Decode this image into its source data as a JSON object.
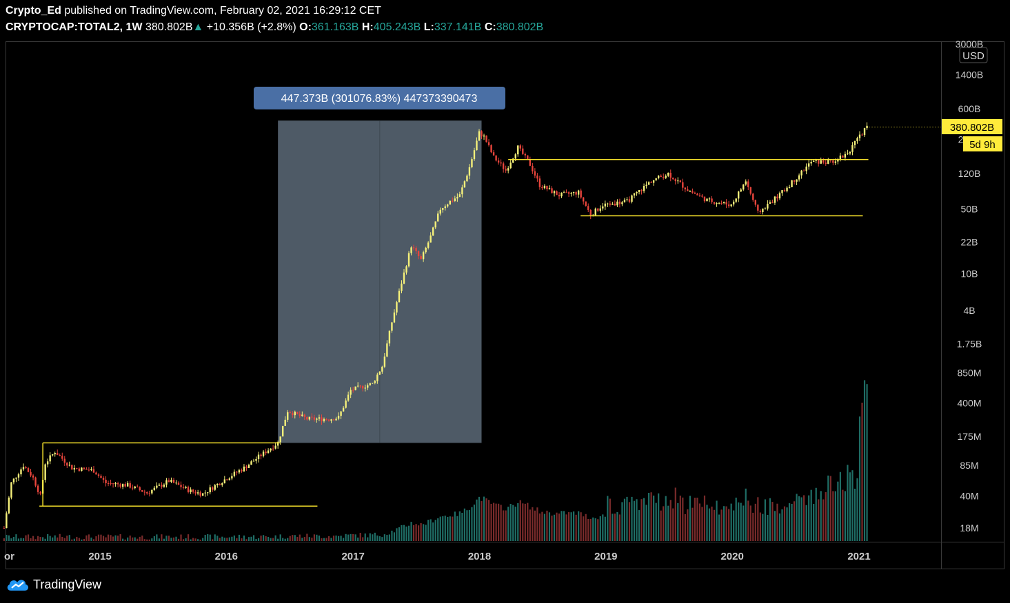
{
  "header": {
    "author": "Crypto_Ed",
    "published": "published on TradingView.com, February 02, 2021 16:29:12 CET",
    "symbol": "CRYPTOCAP:TOTAL2, 1W",
    "last": "380.802B",
    "up_arrow": "▲",
    "change": "+10.356B (+2.8%)",
    "o_label": "O:",
    "o_value": "361.163B",
    "h_label": "H:",
    "h_value": "405.243B",
    "l_label": "L:",
    "l_value": "337.141B",
    "c_label": "C:",
    "c_value": "380.802B"
  },
  "measure_label": "447.373B (301076.83%) 447373390473",
  "currency": "USD",
  "price_badge": "380.802B",
  "countdown_badge": "5d 9h",
  "footer_brand": "TradingView",
  "colors": {
    "up": "#26a69a",
    "down": "#ef5350",
    "candle_up": "#f5f07a",
    "candle_down": "#e8453c",
    "support_line": "#f5e12b",
    "measure_box": "#4e5a66",
    "measure_label_bg": "#4a6fa5",
    "badge": "#ffeb3b"
  },
  "chart_data": {
    "type": "candlestick",
    "scale": "log",
    "x_tick_labels": [
      "or",
      "2015",
      "2016",
      "2017",
      "2018",
      "2019",
      "2020",
      "2021"
    ],
    "x_tick_dates": [
      "2014-03-30",
      "2015-01-01",
      "2016-01-01",
      "2017-01-01",
      "2018-01-01",
      "2019-01-01",
      "2020-01-01",
      "2021-01-01"
    ],
    "y_tick_labels": [
      "3000B",
      "1400B",
      "600B",
      "280B",
      "120B",
      "50B",
      "22B",
      "10B",
      "4B",
      "1.75B",
      "850M",
      "400M",
      "175M",
      "85M",
      "40M",
      "18M"
    ],
    "y_tick_values": [
      3000000000000.0,
      1400000000000.0,
      600000000000.0,
      280000000000.0,
      120000000000.0,
      50000000000.0,
      22000000000.0,
      10000000000.0,
      4000000000.0,
      1750000000.0,
      850000000.0,
      400000000.0,
      175000000.0,
      85000000.0,
      40000000.0,
      18000000.0
    ],
    "last_close": 380802000000.0,
    "measure": {
      "from_date": "2016-05-29",
      "to_date": "2018-01-07",
      "from_value": 149000000.0,
      "to_value": 447373000000.0,
      "change_pct": 301076.83
    },
    "support_lines": [
      {
        "from_date": "2014-07-20",
        "to_date": "2016-06-05",
        "value": 149000000.0
      },
      {
        "from_date": "2014-07-10",
        "to_date": "2016-09-20",
        "value": 31000000.0
      },
      {
        "from_date": "2018-03-25",
        "to_date": "2021-01-28",
        "value": 170000000000.0
      },
      {
        "from_date": "2018-10-20",
        "to_date": "2021-01-12",
        "value": 42000000000.0
      }
    ],
    "close_path": [
      [
        "2014-03-30",
        18000000.0
      ],
      [
        "2014-04-20",
        55000000.0
      ],
      [
        "2014-05-25",
        85000000.0
      ],
      [
        "2014-06-20",
        65000000.0
      ],
      [
        "2014-07-13",
        40000000.0
      ],
      [
        "2014-07-27",
        90000000.0
      ],
      [
        "2014-08-24",
        120000000.0
      ],
      [
        "2014-10-12",
        80000000.0
      ],
      [
        "2014-12-14",
        75000000.0
      ],
      [
        "2015-01-18",
        55000000.0
      ],
      [
        "2015-03-22",
        52000000.0
      ],
      [
        "2015-05-17",
        43000000.0
      ],
      [
        "2015-07-19",
        58000000.0
      ],
      [
        "2015-09-20",
        45000000.0
      ],
      [
        "2015-10-25",
        42000000.0
      ],
      [
        "2015-12-27",
        60000000.0
      ],
      [
        "2016-02-21",
        80000000.0
      ],
      [
        "2016-04-10",
        110000000.0
      ],
      [
        "2016-05-29",
        150000000.0
      ],
      [
        "2016-06-26",
        330000000.0
      ],
      [
        "2016-08-21",
        270000000.0
      ],
      [
        "2016-10-23",
        270000000.0
      ],
      [
        "2016-11-20",
        280000000.0
      ],
      [
        "2016-12-25",
        550000000.0
      ],
      [
        "2017-02-26",
        650000000.0
      ],
      [
        "2017-03-26",
        1000000000.0
      ],
      [
        "2017-04-23",
        3000000000.0
      ],
      [
        "2017-05-21",
        8000000000.0
      ],
      [
        "2017-06-18",
        20000000000.0
      ],
      [
        "2017-07-16",
        14000000000.0
      ],
      [
        "2017-08-13",
        25000000000.0
      ],
      [
        "2017-09-10",
        50000000000.0
      ],
      [
        "2017-10-08",
        60000000000.0
      ],
      [
        "2017-11-05",
        70000000000.0
      ],
      [
        "2017-12-03",
        140000000000.0
      ],
      [
        "2017-12-31",
        330000000000.0
      ],
      [
        "2018-01-14",
        300000000000.0
      ],
      [
        "2018-02-11",
        180000000000.0
      ],
      [
        "2018-03-18",
        130000000000.0
      ],
      [
        "2018-04-22",
        230000000000.0
      ],
      [
        "2018-05-27",
        150000000000.0
      ],
      [
        "2018-06-24",
        90000000000.0
      ],
      [
        "2018-08-19",
        70000000000.0
      ],
      [
        "2018-10-14",
        75000000000.0
      ],
      [
        "2018-11-18",
        43000000000.0
      ],
      [
        "2018-12-23",
        55000000000.0
      ],
      [
        "2019-03-03",
        60000000000.0
      ],
      [
        "2019-05-12",
        100000000000.0
      ],
      [
        "2019-06-30",
        120000000000.0
      ],
      [
        "2019-08-25",
        80000000000.0
      ],
      [
        "2019-10-20",
        62000000000.0
      ],
      [
        "2019-12-29",
        55000000000.0
      ],
      [
        "2020-02-09",
        100000000000.0
      ],
      [
        "2020-03-15",
        45000000000.0
      ],
      [
        "2020-05-24",
        75000000000.0
      ],
      [
        "2020-08-16",
        160000000000.0
      ],
      [
        "2020-10-11",
        160000000000.0
      ],
      [
        "2020-11-29",
        200000000000.0
      ],
      [
        "2021-01-03",
        300000000000.0
      ],
      [
        "2021-01-24",
        380800000000.0
      ]
    ]
  }
}
